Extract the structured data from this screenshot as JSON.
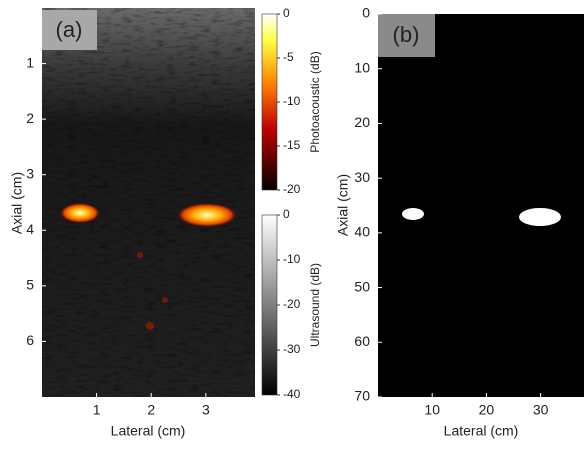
{
  "chart_data": [
    {
      "type": "image",
      "panel_label": "(a)",
      "x_label": "Lateral (cm)",
      "y_label": "Axial (cm)",
      "xlim": [
        0,
        3.9
      ],
      "ylim": [
        0,
        7
      ],
      "xticks": [
        1,
        2,
        3
      ],
      "yticks": [
        1,
        2,
        3,
        4,
        5,
        6
      ],
      "colorbars": [
        {
          "label": "Photoacoustic (dB)",
          "lim": [
            -20,
            0
          ],
          "ticks": [
            0,
            -5,
            -10,
            -15,
            -20
          ],
          "colormap": "hot"
        },
        {
          "label": "Ultrasound (dB)",
          "lim": [
            -40,
            0
          ],
          "ticks": [
            0,
            -10,
            -20,
            -30,
            -40
          ],
          "colormap": "gray"
        }
      ]
    },
    {
      "type": "image",
      "panel_label": "(b)",
      "x_label": "Lateral (cm)",
      "y_label": "Axial (cm)",
      "xlim": [
        0,
        38
      ],
      "ylim": [
        0,
        70
      ],
      "xticks": [
        10,
        20,
        30
      ],
      "yticks": [
        0,
        10,
        20,
        30,
        40,
        50,
        60,
        70
      ]
    }
  ]
}
